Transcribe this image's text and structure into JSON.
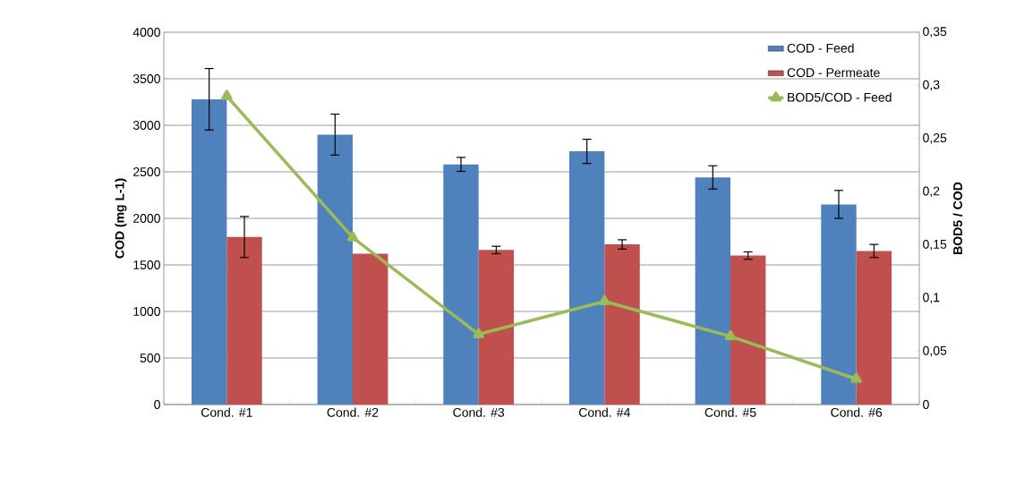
{
  "chart_data": {
    "type": "bar",
    "categories": [
      "Cond. #1",
      "Cond. #2",
      "Cond. #3",
      "Cond. #4",
      "Cond. #5",
      "Cond. #6"
    ],
    "series": [
      {
        "name": "COD - Feed",
        "color": "#4f81bd",
        "values": [
          3280,
          2900,
          2580,
          2720,
          2440,
          2150
        ],
        "errors": [
          330,
          220,
          75,
          130,
          125,
          150
        ]
      },
      {
        "name": "COD - Permeate",
        "color": "#c0504d",
        "values": [
          1800,
          1620,
          1660,
          1720,
          1600,
          1650
        ],
        "errors": [
          220,
          null,
          40,
          50,
          40,
          70
        ]
      },
      {
        "name": "BOD5/COD - Feed",
        "type": "line",
        "axis": "y2",
        "marker": "triangle",
        "color": "#9bbb59",
        "values": [
          0.29,
          0.157,
          0.066,
          0.097,
          0.064,
          0.024
        ]
      }
    ],
    "ylabel": "COD (mg L-1)",
    "y2label": "BOD5 / COD",
    "ylim": [
      0,
      4000
    ],
    "yticks": [
      0,
      500,
      1000,
      1500,
      2000,
      2500,
      3000,
      3500,
      4000
    ],
    "y2lim": [
      0,
      0.35
    ],
    "y2ticks": [
      0,
      {
        "value": 0.05,
        "label": "0,05"
      },
      {
        "value": 0.1,
        "label": "0,1"
      },
      {
        "value": 0.15,
        "label": "0,15"
      },
      {
        "value": 0.2,
        "label": "0,2"
      },
      {
        "value": 0.25,
        "label": "0,25"
      },
      {
        "value": 0.3,
        "label": "0,3"
      },
      {
        "value": 0.35,
        "label": "0,35"
      }
    ],
    "grid": "y",
    "legend": "top right"
  }
}
